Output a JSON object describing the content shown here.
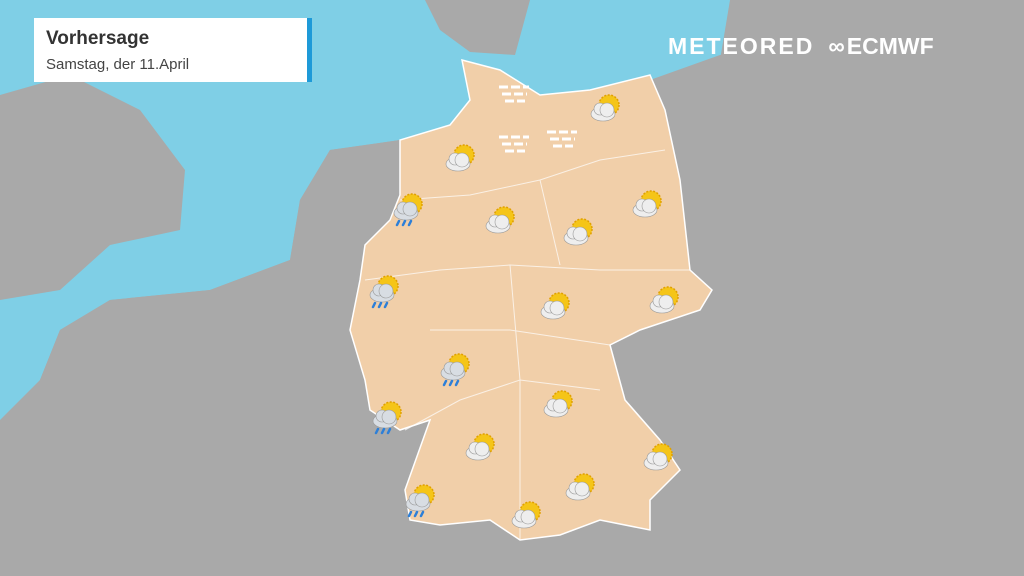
{
  "header": {
    "title": "Vorhersage",
    "subtitle": "Samstag, der 11.April"
  },
  "logos": {
    "meteored": "METEORED",
    "ecmwf": "ECMWF"
  },
  "colors": {
    "sea": "#7fcfe6",
    "land": "#a9a9a9",
    "germany": "#f1cfa9",
    "sun": "#f5c518",
    "cloud": "#eeeeee",
    "rain": "#2d7fd8",
    "title_accent": "#1e9ad8"
  },
  "weather_icons": [
    "fog",
    "fog",
    "fog",
    "partly-cloudy",
    "partly-cloudy",
    "partly-cloudy",
    "partly-cloudy",
    "partly-cloudy",
    "partly-cloudy",
    "partly-cloudy",
    "partly-cloudy",
    "partly-cloudy",
    "partly-cloudy",
    "partly-cloudy",
    "partly-cloudy",
    "rain",
    "rain",
    "rain",
    "rain",
    "rain"
  ]
}
